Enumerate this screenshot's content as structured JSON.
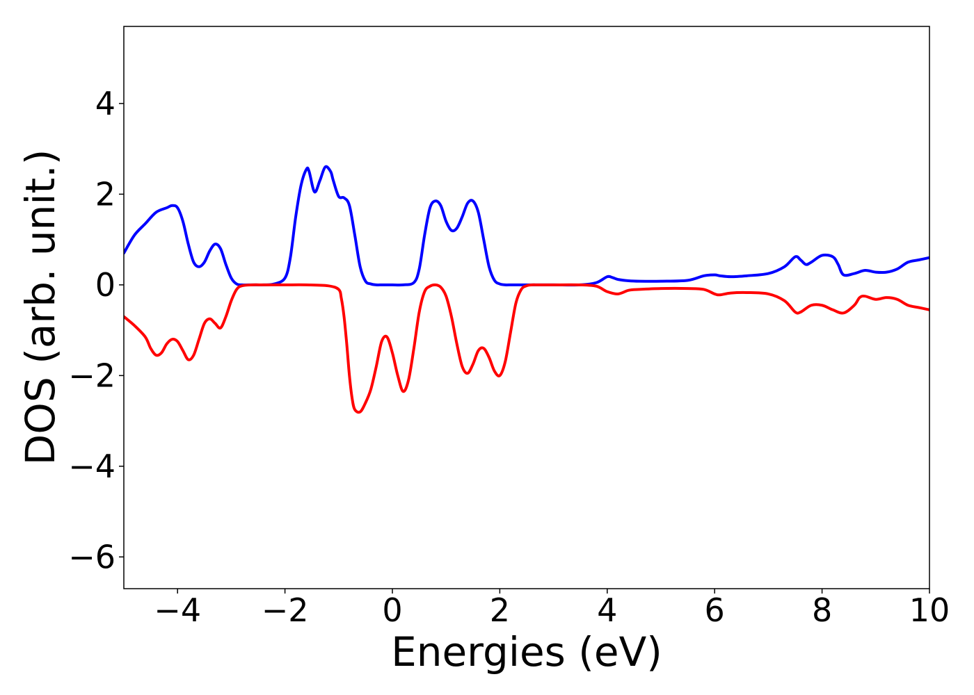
{
  "chart_data": {
    "type": "line",
    "title": "",
    "xlabel": "Energies (eV)",
    "ylabel": "DOS (arb. unit.)",
    "xlim": [
      -5,
      10
    ],
    "ylim": [
      -6.7,
      5.7
    ],
    "xticks": [
      -4,
      -2,
      0,
      2,
      4,
      6,
      8,
      10
    ],
    "yticks": [
      -6,
      -4,
      -2,
      0,
      2,
      4
    ],
    "xtick_labels": [
      "−4",
      "−2",
      "0",
      "2",
      "4",
      "6",
      "8",
      "10"
    ],
    "ytick_labels": [
      "−6",
      "−4",
      "−2",
      "0",
      "2",
      "4"
    ],
    "grid": false,
    "legend": "none",
    "series": [
      {
        "color": "#0000ff",
        "x": [
          -5,
          -4.8,
          -4.6,
          -4.4,
          -4.2,
          -4.1,
          -4.0,
          -3.9,
          -3.8,
          -3.7,
          -3.6,
          -3.5,
          -3.4,
          -3.3,
          -3.2,
          -3.1,
          -3.0,
          -2.9,
          -2.8,
          -2.6,
          -2.4,
          -2.2,
          -2.0,
          -1.9,
          -1.8,
          -1.7,
          -1.6,
          -1.55,
          -1.45,
          -1.35,
          -1.25,
          -1.15,
          -1.1,
          -1.0,
          -0.9,
          -0.8,
          -0.7,
          -0.6,
          -0.5,
          -0.4,
          -0.3,
          -0.2,
          -0.1,
          0,
          0.2,
          0.4,
          0.5,
          0.6,
          0.7,
          0.8,
          0.9,
          1.0,
          1.1,
          1.2,
          1.3,
          1.4,
          1.5,
          1.6,
          1.7,
          1.8,
          1.9,
          2.0,
          2.1,
          2.2,
          2.3,
          2.4,
          2.6,
          3.0,
          3.5,
          3.8,
          4.0,
          4.1,
          4.2,
          4.4,
          4.6,
          5.0,
          5.5,
          5.8,
          6.0,
          6.1,
          6.3,
          6.6,
          7.0,
          7.3,
          7.5,
          7.6,
          7.7,
          7.8,
          8.0,
          8.2,
          8.3,
          8.4,
          8.6,
          8.8,
          9.0,
          9.2,
          9.4,
          9.6,
          9.8,
          10.0
        ],
        "y": [
          0.7,
          1.1,
          1.35,
          1.6,
          1.7,
          1.75,
          1.7,
          1.4,
          0.9,
          0.5,
          0.4,
          0.5,
          0.75,
          0.9,
          0.8,
          0.45,
          0.15,
          0.02,
          0.0,
          0.0,
          0.0,
          0.02,
          0.15,
          0.6,
          1.5,
          2.2,
          2.55,
          2.5,
          2.05,
          2.3,
          2.6,
          2.5,
          2.3,
          1.95,
          1.92,
          1.75,
          1.1,
          0.4,
          0.08,
          0.02,
          0.0,
          0.0,
          0.0,
          0.0,
          0.0,
          0.05,
          0.35,
          1.1,
          1.7,
          1.85,
          1.75,
          1.4,
          1.2,
          1.25,
          1.5,
          1.8,
          1.85,
          1.6,
          1.0,
          0.4,
          0.1,
          0.02,
          0.0,
          0.0,
          0.0,
          0.0,
          0.0,
          0.0,
          0.0,
          0.05,
          0.18,
          0.16,
          0.12,
          0.09,
          0.08,
          0.08,
          0.1,
          0.2,
          0.22,
          0.2,
          0.18,
          0.2,
          0.25,
          0.4,
          0.62,
          0.55,
          0.45,
          0.5,
          0.65,
          0.62,
          0.45,
          0.22,
          0.25,
          0.32,
          0.28,
          0.28,
          0.35,
          0.5,
          0.55,
          0.6
        ]
      },
      {
        "color": "#ff0000",
        "x": [
          -5,
          -4.8,
          -4.6,
          -4.5,
          -4.4,
          -4.3,
          -4.2,
          -4.1,
          -4.0,
          -3.9,
          -3.8,
          -3.7,
          -3.6,
          -3.5,
          -3.4,
          -3.3,
          -3.2,
          -3.1,
          -3.0,
          -2.9,
          -2.8,
          -2.6,
          -2.4,
          -2.0,
          -1.6,
          -1.2,
          -1.0,
          -0.95,
          -0.9,
          -0.85,
          -0.8,
          -0.75,
          -0.7,
          -0.6,
          -0.5,
          -0.4,
          -0.3,
          -0.2,
          -0.1,
          0,
          0.1,
          0.2,
          0.3,
          0.4,
          0.5,
          0.6,
          0.7,
          0.8,
          0.9,
          1.0,
          1.1,
          1.2,
          1.3,
          1.4,
          1.5,
          1.6,
          1.7,
          1.8,
          1.9,
          2.0,
          2.1,
          2.2,
          2.3,
          2.4,
          2.5,
          2.6,
          2.7,
          2.8,
          3.0,
          3.5,
          3.8,
          4.0,
          4.2,
          4.4,
          4.6,
          5.0,
          5.5,
          5.8,
          6.0,
          6.1,
          6.3,
          6.6,
          7.0,
          7.3,
          7.5,
          7.6,
          7.8,
          8.0,
          8.2,
          8.4,
          8.6,
          8.7,
          8.8,
          9.0,
          9.2,
          9.4,
          9.6,
          9.8,
          10.0
        ],
        "y": [
          -0.7,
          -0.9,
          -1.15,
          -1.4,
          -1.55,
          -1.5,
          -1.3,
          -1.2,
          -1.25,
          -1.45,
          -1.65,
          -1.55,
          -1.2,
          -0.85,
          -0.75,
          -0.85,
          -0.95,
          -0.7,
          -0.35,
          -0.1,
          -0.02,
          0.0,
          0.0,
          0.0,
          0.0,
          -0.02,
          -0.1,
          -0.3,
          -0.7,
          -1.3,
          -2.0,
          -2.5,
          -2.75,
          -2.8,
          -2.6,
          -2.3,
          -1.8,
          -1.25,
          -1.15,
          -1.5,
          -2.0,
          -2.35,
          -2.1,
          -1.4,
          -0.6,
          -0.15,
          -0.03,
          0.0,
          -0.05,
          -0.25,
          -0.7,
          -1.3,
          -1.8,
          -1.95,
          -1.75,
          -1.45,
          -1.4,
          -1.6,
          -1.9,
          -2.0,
          -1.7,
          -1.05,
          -0.4,
          -0.1,
          -0.02,
          0.0,
          0.0,
          0.0,
          0.0,
          0.0,
          -0.03,
          -0.15,
          -0.2,
          -0.12,
          -0.1,
          -0.08,
          -0.08,
          -0.1,
          -0.2,
          -0.22,
          -0.18,
          -0.17,
          -0.2,
          -0.35,
          -0.6,
          -0.6,
          -0.45,
          -0.45,
          -0.55,
          -0.62,
          -0.45,
          -0.28,
          -0.25,
          -0.32,
          -0.28,
          -0.32,
          -0.45,
          -0.5,
          -0.55
        ]
      }
    ]
  }
}
